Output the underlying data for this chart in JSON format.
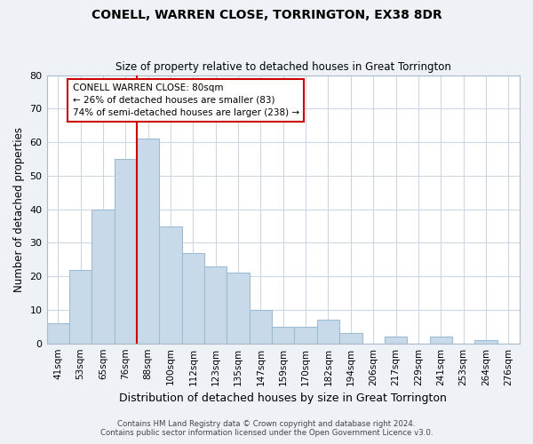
{
  "title": "CONELL, WARREN CLOSE, TORRINGTON, EX38 8DR",
  "subtitle": "Size of property relative to detached houses in Great Torrington",
  "xlabel": "Distribution of detached houses by size in Great Torrington",
  "ylabel": "Number of detached properties",
  "bar_labels": [
    "41sqm",
    "53sqm",
    "65sqm",
    "76sqm",
    "88sqm",
    "100sqm",
    "112sqm",
    "123sqm",
    "135sqm",
    "147sqm",
    "159sqm",
    "170sqm",
    "182sqm",
    "194sqm",
    "206sqm",
    "217sqm",
    "229sqm",
    "241sqm",
    "253sqm",
    "264sqm",
    "276sqm"
  ],
  "bar_values": [
    6,
    22,
    40,
    55,
    61,
    35,
    27,
    23,
    21,
    10,
    5,
    5,
    7,
    3,
    0,
    2,
    0,
    2,
    0,
    1,
    0
  ],
  "bar_color": "#c8daea",
  "bar_edge_color": "#9bbcd4",
  "vline_color": "#cc0000",
  "ylim": [
    0,
    80
  ],
  "yticks": [
    0,
    10,
    20,
    30,
    40,
    50,
    60,
    70,
    80
  ],
  "annotation_title": "CONELL WARREN CLOSE: 80sqm",
  "annotation_line1": "← 26% of detached houses are smaller (83)",
  "annotation_line2": "74% of semi-detached houses are larger (238) →",
  "footer_line1": "Contains HM Land Registry data © Crown copyright and database right 2024.",
  "footer_line2": "Contains public sector information licensed under the Open Government Licence v3.0.",
  "background_color": "#eef2f7",
  "plot_bg_color": "#ffffff",
  "grid_color": "#ccd8e8"
}
